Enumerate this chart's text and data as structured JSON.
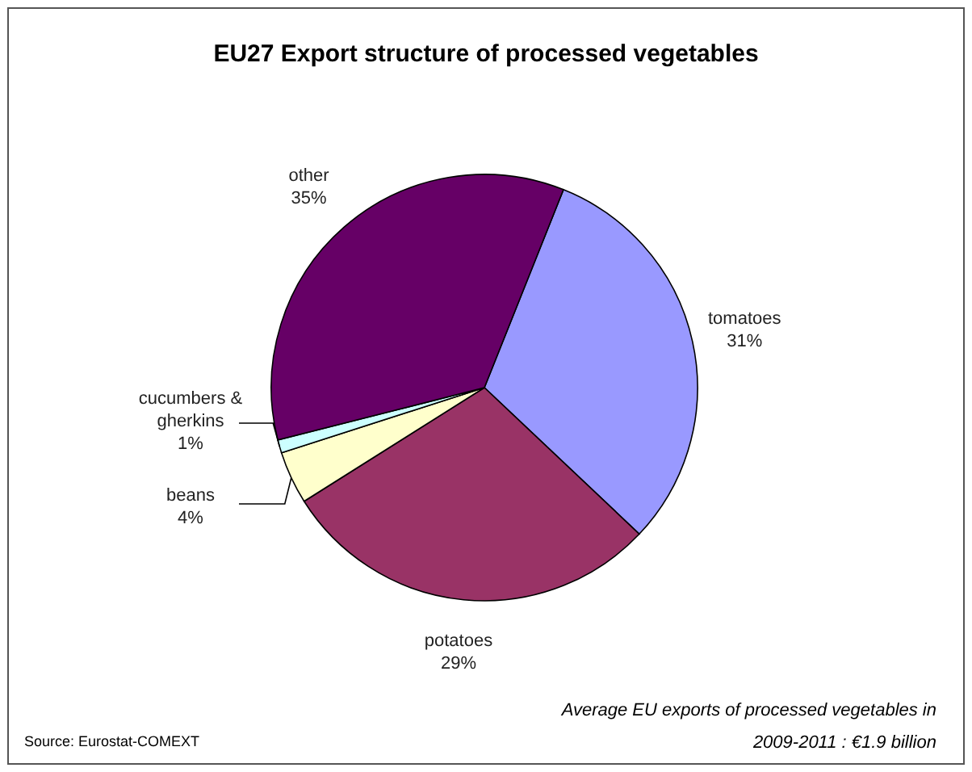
{
  "chart_data": {
    "type": "pie",
    "title": "EU27 Export structure of processed vegetables",
    "categories": [
      "tomatoes",
      "potatoes",
      "beans",
      "cucumbers & gherkins",
      "other"
    ],
    "values": [
      31,
      29,
      4,
      1,
      35
    ],
    "value_labels": [
      "31%",
      "29%",
      "4%",
      "1%",
      "35%"
    ],
    "colors": [
      "#9999ff",
      "#993366",
      "#ffffcc",
      "#ccffff",
      "#660066"
    ],
    "annotations": [
      "Source: Eurostat-COMEXT",
      "Average EU exports of processed vegetables in 2009-2011 : €1.9 billion"
    ]
  }
}
